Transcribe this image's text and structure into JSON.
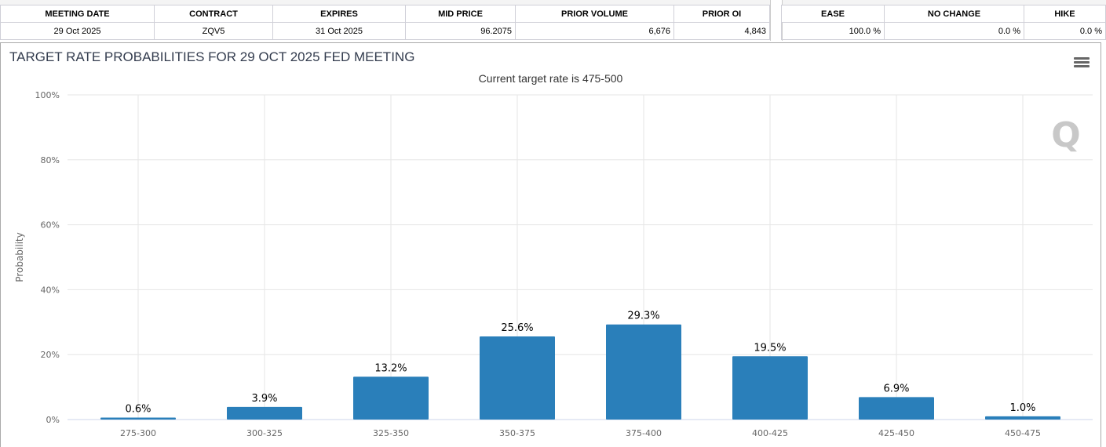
{
  "table": {
    "headers": [
      "MEETING DATE",
      "CONTRACT",
      "EXPIRES",
      "MID PRICE",
      "PRIOR VOLUME",
      "PRIOR OI"
    ],
    "row": [
      "29 Oct 2025",
      "ZQV5",
      "31 Oct 2025",
      "96.2075",
      "6,676",
      "4,843"
    ]
  },
  "prob_table": {
    "headers": [
      "EASE",
      "NO CHANGE",
      "HIKE"
    ],
    "row": [
      "100.0 %",
      "0.0 %",
      "0.0 %"
    ]
  },
  "chart_data": {
    "type": "bar",
    "title": "TARGET RATE PROBABILITIES FOR 29 OCT 2025 FED MEETING",
    "subtitle": "Current target rate is 475-500",
    "ylabel": "Probability",
    "xlabel": "",
    "ylim": [
      0,
      100
    ],
    "yticks": [
      "0%",
      "20%",
      "40%",
      "60%",
      "80%",
      "100%"
    ],
    "categories": [
      "275-300",
      "300-325",
      "325-350",
      "350-375",
      "375-400",
      "400-425",
      "425-450",
      "450-475"
    ],
    "values": [
      0.6,
      3.9,
      13.2,
      25.6,
      29.3,
      19.5,
      6.9,
      1.0
    ],
    "data_labels": [
      "0.6%",
      "3.9%",
      "13.2%",
      "25.6%",
      "29.3%",
      "19.5%",
      "6.9%",
      "1.0%"
    ],
    "bar_color": "#2a7fba",
    "grid": true,
    "watermark": "Q",
    "menu_icon": "hamburger-icon"
  }
}
